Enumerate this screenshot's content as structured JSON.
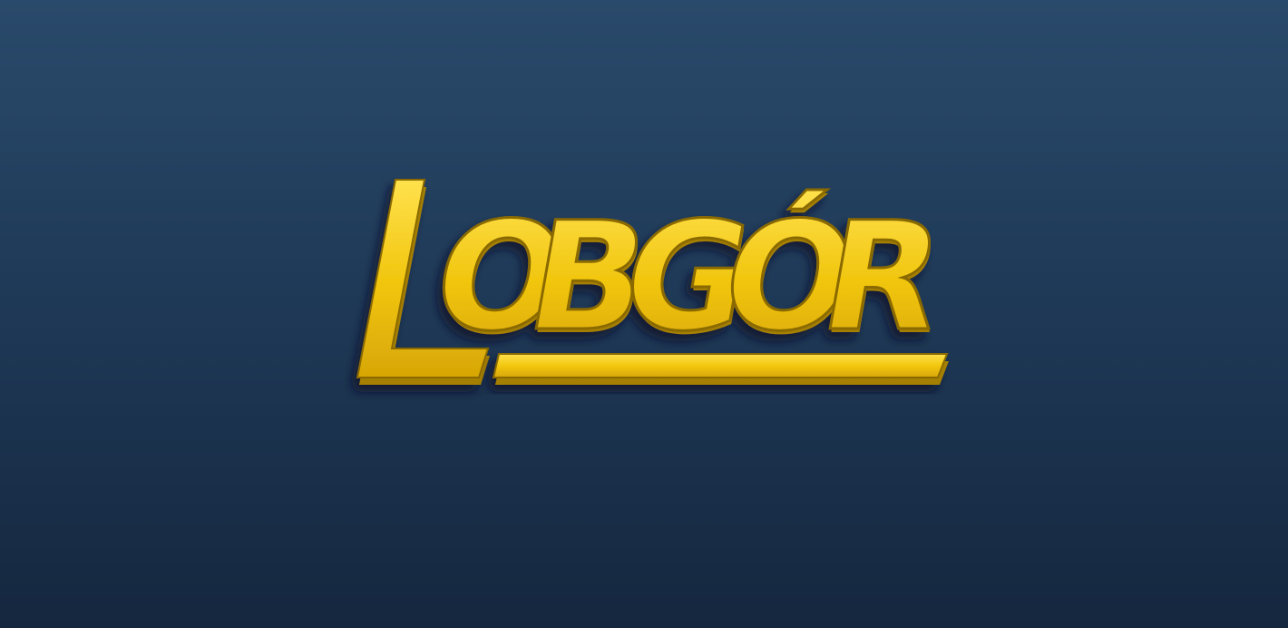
{
  "logo": {
    "wordmark_letters": [
      "L",
      "O",
      "B",
      "G",
      "Ó",
      "R"
    ],
    "colors": {
      "fill": "#f0c40a",
      "highlight": "#ffe14d",
      "bevel": "#a57f06",
      "shadow": "#0b1626"
    }
  },
  "background": {
    "top_color": "#2a4a6b",
    "bottom_color": "#15273f"
  }
}
